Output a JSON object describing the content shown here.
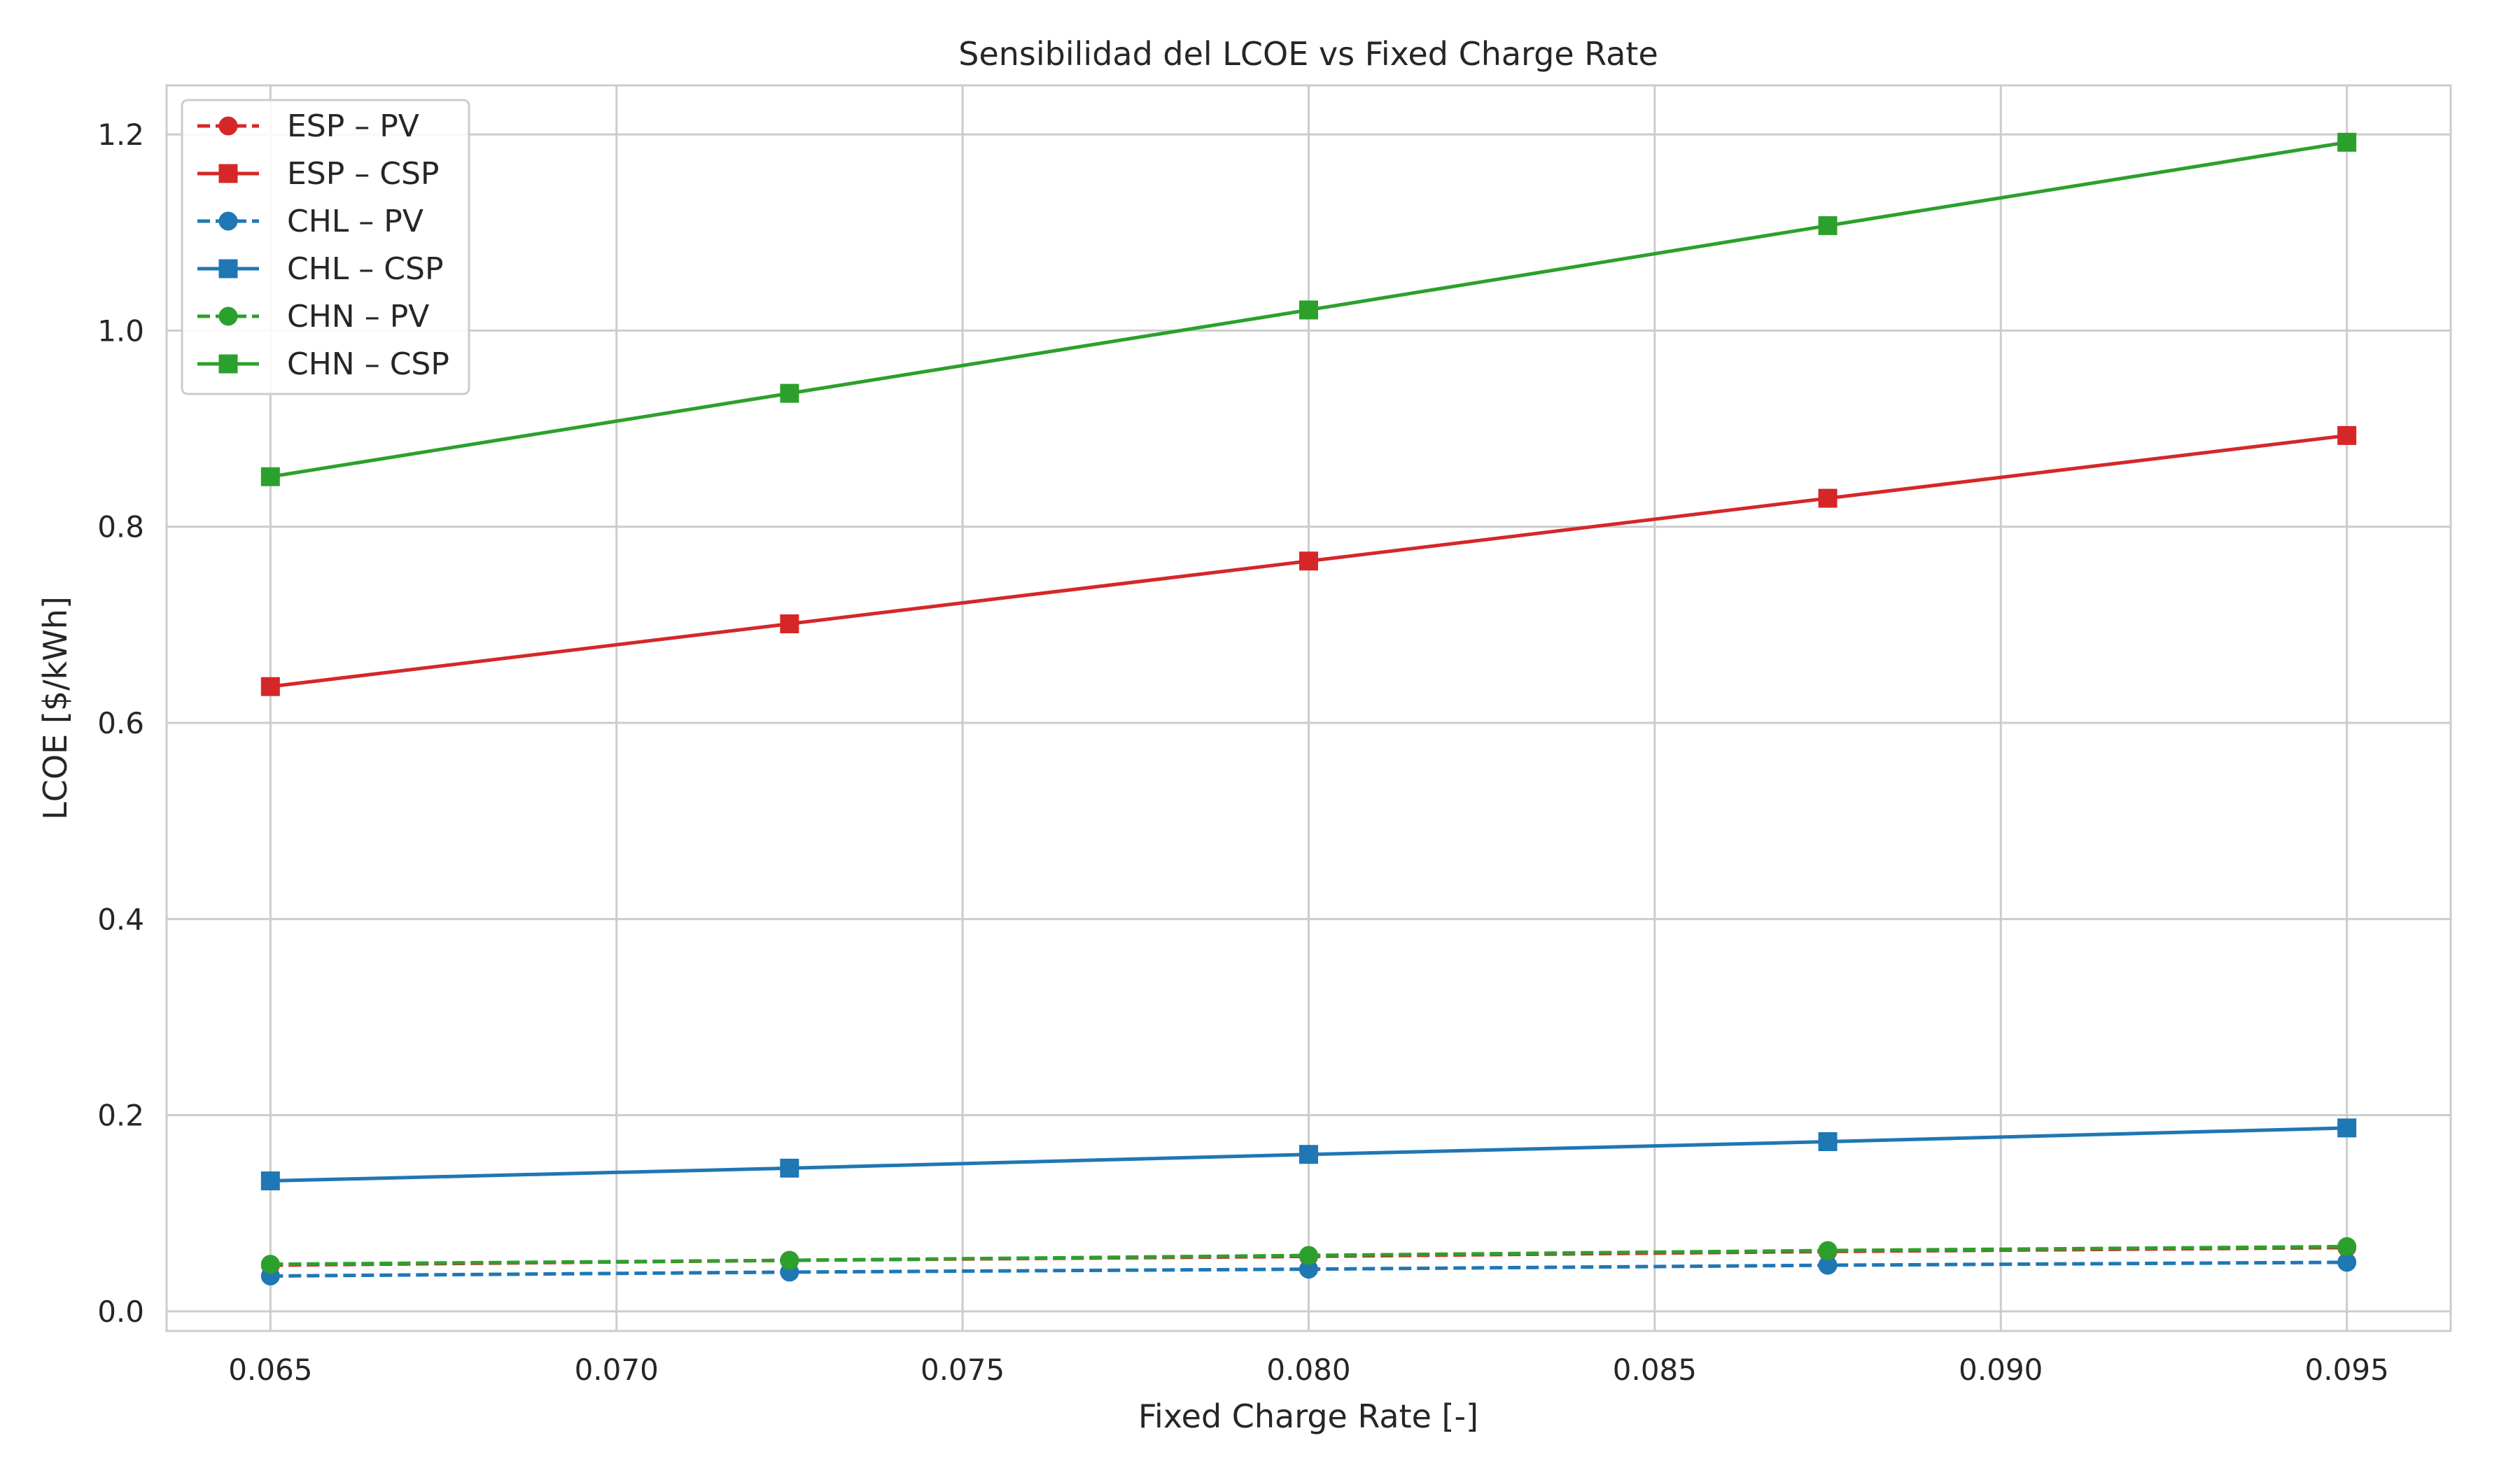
{
  "chart_data": {
    "type": "line",
    "title": "Sensibilidad del LCOE vs Fixed Charge Rate",
    "xlabel": "Fixed Charge Rate [-]",
    "ylabel": "LCOE [$/kWh]",
    "xlim": [
      0.0635,
      0.0965
    ],
    "ylim": [
      -0.02,
      1.25
    ],
    "xticks": [
      "0.065",
      "0.070",
      "0.075",
      "0.080",
      "0.085",
      "0.090",
      "0.095"
    ],
    "yticks": [
      "0.0",
      "0.2",
      "0.4",
      "0.6",
      "0.8",
      "1.0",
      "1.2"
    ],
    "grid": true,
    "legend_position": "upper left",
    "x": [
      0.065,
      0.0725,
      0.08,
      0.0875,
      0.095
    ],
    "series": [
      {
        "name": "ESP – PV",
        "color": "#d62728",
        "linestyle": "dashed",
        "marker": "circle",
        "values": [
          0.047,
          0.052,
          0.056,
          0.061,
          0.065
        ]
      },
      {
        "name": "ESP – CSP",
        "color": "#d62728",
        "linestyle": "solid",
        "marker": "square",
        "values": [
          0.637,
          0.701,
          0.765,
          0.829,
          0.893
        ]
      },
      {
        "name": "CHL – PV",
        "color": "#1f77b4",
        "linestyle": "dashed",
        "marker": "circle",
        "values": [
          0.036,
          0.04,
          0.043,
          0.047,
          0.05
        ]
      },
      {
        "name": "CHL – CSP",
        "color": "#1f77b4",
        "linestyle": "solid",
        "marker": "square",
        "values": [
          0.133,
          0.146,
          0.16,
          0.173,
          0.187
        ]
      },
      {
        "name": "CHN – PV",
        "color": "#2ca02c",
        "linestyle": "dashed",
        "marker": "circle",
        "values": [
          0.048,
          0.052,
          0.057,
          0.062,
          0.066
        ]
      },
      {
        "name": "CHN – CSP",
        "color": "#2ca02c",
        "linestyle": "solid",
        "marker": "square",
        "values": [
          0.851,
          0.936,
          1.021,
          1.107,
          1.192
        ]
      }
    ]
  }
}
